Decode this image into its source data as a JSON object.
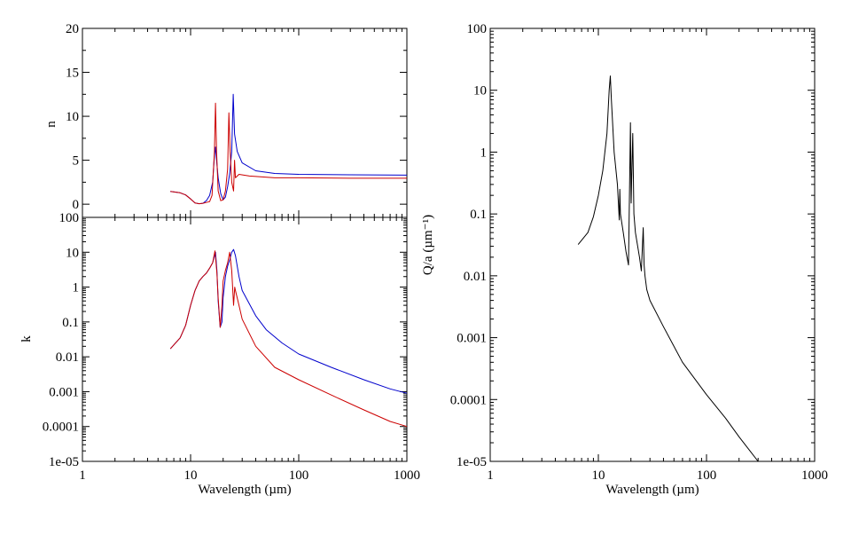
{
  "chart_data": [
    {
      "type": "line",
      "panel": "refractive-index-n",
      "ylabel": "n",
      "xlabel": "",
      "xscale": "log",
      "yscale": "linear",
      "xlim": [
        1,
        1000
      ],
      "ylim": [
        0,
        20
      ],
      "xticks": [
        "1",
        "10",
        "100",
        "1000"
      ],
      "yticks": [
        "0",
        "5",
        "10",
        "15",
        "20"
      ],
      "grid": false,
      "series": [
        {
          "color": "#0000cc",
          "points": [
            [
              6.5,
              1.45
            ],
            [
              8,
              1.3
            ],
            [
              9,
              1.05
            ],
            [
              10,
              0.6
            ],
            [
              11,
              0.15
            ],
            [
              12,
              0.05
            ],
            [
              13,
              0.1
            ],
            [
              14,
              0.4
            ],
            [
              15,
              1.0
            ],
            [
              16,
              2.5
            ],
            [
              16.6,
              5.5
            ],
            [
              17,
              6.5
            ],
            [
              17.4,
              5.0
            ],
            [
              18,
              3.0
            ],
            [
              19,
              1.2
            ],
            [
              20,
              0.5
            ],
            [
              21,
              0.8
            ],
            [
              22,
              2.0
            ],
            [
              23,
              3.5
            ],
            [
              24,
              6.0
            ],
            [
              24.8,
              12.5
            ],
            [
              25.5,
              8.0
            ],
            [
              27,
              6.0
            ],
            [
              30,
              4.7
            ],
            [
              40,
              3.8
            ],
            [
              60,
              3.5
            ],
            [
              100,
              3.4
            ],
            [
              300,
              3.35
            ],
            [
              1000,
              3.3
            ]
          ]
        },
        {
          "color": "#cc0000",
          "points": [
            [
              6.5,
              1.45
            ],
            [
              8,
              1.3
            ],
            [
              9,
              1.05
            ],
            [
              10,
              0.6
            ],
            [
              11,
              0.15
            ],
            [
              12,
              0.05
            ],
            [
              13,
              0.1
            ],
            [
              14,
              0.2
            ],
            [
              15,
              0.3
            ],
            [
              15.8,
              1.0
            ],
            [
              16.6,
              6.0
            ],
            [
              17,
              11.5
            ],
            [
              17.4,
              6.0
            ],
            [
              18,
              1.5
            ],
            [
              19,
              0.4
            ],
            [
              20,
              0.5
            ],
            [
              21,
              1.5
            ],
            [
              22,
              4.0
            ],
            [
              22.6,
              10.4
            ],
            [
              23.2,
              6.0
            ],
            [
              24,
              2.5
            ],
            [
              25,
              1.5
            ],
            [
              25.5,
              5.0
            ],
            [
              26,
              3.0
            ],
            [
              28,
              3.4
            ],
            [
              35,
              3.2
            ],
            [
              60,
              3.0
            ],
            [
              100,
              3.0
            ],
            [
              300,
              2.95
            ],
            [
              1000,
              2.95
            ]
          ]
        }
      ]
    },
    {
      "type": "line",
      "panel": "extinction-coefficient-k",
      "ylabel": "k",
      "xlabel": "Wavelength (µm)",
      "xscale": "log",
      "yscale": "log",
      "xlim": [
        1,
        1000
      ],
      "ylim": [
        1e-05,
        100
      ],
      "xticks": [
        "1",
        "10",
        "100",
        "1000"
      ],
      "yticks": [
        "1e-05",
        "0.0001",
        "0.001",
        "0.01",
        "0.1",
        "1",
        "10",
        "100"
      ],
      "grid": false,
      "series": [
        {
          "color": "#0000cc",
          "points": [
            [
              6.5,
              0.017
            ],
            [
              8,
              0.035
            ],
            [
              9,
              0.08
            ],
            [
              10,
              0.3
            ],
            [
              11,
              0.8
            ],
            [
              12,
              1.5
            ],
            [
              13,
              2.0
            ],
            [
              14,
              2.5
            ],
            [
              15,
              3.5
            ],
            [
              16,
              5.0
            ],
            [
              17,
              10
            ],
            [
              17.5,
              3.0
            ],
            [
              18,
              0.4
            ],
            [
              18.8,
              0.07
            ],
            [
              19.5,
              0.1
            ],
            [
              20,
              0.5
            ],
            [
              21,
              2.0
            ],
            [
              22,
              4.0
            ],
            [
              23,
              6.0
            ],
            [
              24,
              10
            ],
            [
              25,
              12
            ],
            [
              26,
              8
            ],
            [
              28,
              2.0
            ],
            [
              30,
              0.8
            ],
            [
              40,
              0.15
            ],
            [
              50,
              0.06
            ],
            [
              70,
              0.025
            ],
            [
              100,
              0.012
            ],
            [
              200,
              0.005
            ],
            [
              400,
              0.0022
            ],
            [
              700,
              0.0012
            ],
            [
              1000,
              0.0009
            ]
          ]
        },
        {
          "color": "#cc0000",
          "points": [
            [
              6.5,
              0.017
            ],
            [
              8,
              0.035
            ],
            [
              9,
              0.08
            ],
            [
              10,
              0.3
            ],
            [
              11,
              0.8
            ],
            [
              12,
              1.5
            ],
            [
              13,
              2.0
            ],
            [
              14,
              2.5
            ],
            [
              15,
              3.5
            ],
            [
              16,
              5.0
            ],
            [
              16.8,
              11
            ],
            [
              17.5,
              2.5
            ],
            [
              18,
              0.5
            ],
            [
              18.8,
              0.07
            ],
            [
              19.5,
              0.3
            ],
            [
              20,
              1.5
            ],
            [
              21,
              3.0
            ],
            [
              22,
              5.0
            ],
            [
              23,
              10
            ],
            [
              24,
              3.0
            ],
            [
              25,
              0.3
            ],
            [
              25.6,
              1.0
            ],
            [
              26,
              0.8
            ],
            [
              28,
              0.3
            ],
            [
              30,
              0.12
            ],
            [
              40,
              0.02
            ],
            [
              60,
              0.005
            ],
            [
              100,
              0.0022
            ],
            [
              200,
              0.0008
            ],
            [
              400,
              0.0003
            ],
            [
              700,
              0.00014
            ],
            [
              1000,
              0.0001
            ]
          ]
        }
      ]
    },
    {
      "type": "line",
      "panel": "absorption-efficiency",
      "ylabel": "Q/a (µm⁻¹)",
      "xlabel": "Wavelength (µm)",
      "xscale": "log",
      "yscale": "log",
      "xlim": [
        1,
        1000
      ],
      "ylim": [
        1e-05,
        100
      ],
      "xticks": [
        "1",
        "10",
        "100",
        "1000"
      ],
      "yticks": [
        "1e-05",
        "0.0001",
        "0.001",
        "0.01",
        "0.1",
        "1",
        "10",
        "100"
      ],
      "grid": false,
      "series": [
        {
          "color": "#000000",
          "points": [
            [
              6.5,
              0.032
            ],
            [
              8,
              0.05
            ],
            [
              9,
              0.09
            ],
            [
              10,
              0.2
            ],
            [
              11,
              0.5
            ],
            [
              12,
              2.0
            ],
            [
              12.6,
              10
            ],
            [
              12.9,
              17
            ],
            [
              13.2,
              7
            ],
            [
              14,
              1.0
            ],
            [
              15,
              0.3
            ],
            [
              15.6,
              0.08
            ],
            [
              15.8,
              0.25
            ],
            [
              16,
              0.1
            ],
            [
              17,
              0.05
            ],
            [
              18,
              0.025
            ],
            [
              19,
              0.015
            ],
            [
              19.8,
              3.0
            ],
            [
              20.1,
              0.15
            ],
            [
              20.4,
              0.5
            ],
            [
              20.8,
              2.0
            ],
            [
              21.3,
              0.1
            ],
            [
              22,
              0.05
            ],
            [
              24,
              0.02
            ],
            [
              25,
              0.012
            ],
            [
              26,
              0.06
            ],
            [
              26.5,
              0.015
            ],
            [
              27,
              0.01
            ],
            [
              28,
              0.006
            ],
            [
              30,
              0.004
            ],
            [
              40,
              0.0015
            ],
            [
              60,
              0.0004
            ],
            [
              100,
              0.00012
            ],
            [
              150,
              5e-05
            ],
            [
              200,
              2.5e-05
            ],
            [
              300,
              1e-05
            ]
          ]
        }
      ]
    }
  ]
}
